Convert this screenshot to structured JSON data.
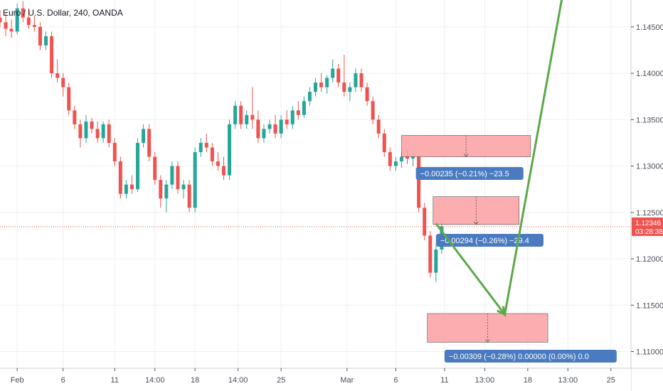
{
  "chart_data": {
    "type": "candlestick",
    "title": "Euro / U.S. Dollar, 240, OANDA",
    "x_range": [
      0,
      110
    ],
    "y_range": [
      1.1082,
      1.1479
    ],
    "y_ticks": [
      "1.14500",
      "1.14000",
      "1.13500",
      "1.13000",
      "1.12500",
      "1.12000",
      "1.11500",
      "1.11000"
    ],
    "x_ticks": [
      {
        "x": 3,
        "label": "Feb"
      },
      {
        "x": 11,
        "label": "6"
      },
      {
        "x": 20,
        "label": "11"
      },
      {
        "x": 27,
        "label": "14:00"
      },
      {
        "x": 34,
        "label": "18"
      },
      {
        "x": 41.5,
        "label": "14:00"
      },
      {
        "x": 49,
        "label": "25"
      },
      {
        "x": 60.5,
        "label": "Mar"
      },
      {
        "x": 69,
        "label": "6"
      },
      {
        "x": 77.5,
        "label": "11"
      },
      {
        "x": 84.5,
        "label": "13:00"
      },
      {
        "x": 92,
        "label": "18"
      },
      {
        "x": 99,
        "label": "13:00"
      },
      {
        "x": 106.5,
        "label": "25"
      }
    ],
    "current_price": {
      "value": 1.12346,
      "label": "1.12346",
      "countdown": "03:28:38"
    },
    "colors": {
      "up": "#26a69a",
      "down": "#ef5350",
      "arrow": "#5ca84a",
      "box_fill": "#fb9fa1",
      "label_bg": "#4a7bc0",
      "price_tag": "#ef5350",
      "grid": "#eef0f3"
    },
    "candles": [
      [
        0,
        1.146,
        1.1468,
        1.145,
        1.1455
      ],
      [
        1,
        1.1455,
        1.1465,
        1.144,
        1.1448
      ],
      [
        2,
        1.1448,
        1.1458,
        1.1438,
        1.1445
      ],
      [
        3,
        1.1445,
        1.1475,
        1.1442,
        1.147
      ],
      [
        4,
        1.147,
        1.1478,
        1.1455,
        1.146
      ],
      [
        5,
        1.146,
        1.147,
        1.1448,
        1.1452
      ],
      [
        6,
        1.1452,
        1.1462,
        1.1445,
        1.145
      ],
      [
        7,
        1.145,
        1.1455,
        1.1425,
        1.143
      ],
      [
        8,
        1.143,
        1.1445,
        1.1425,
        1.144
      ],
      [
        9,
        1.144,
        1.1445,
        1.1395,
        1.14
      ],
      [
        10,
        1.14,
        1.1415,
        1.139,
        1.1395
      ],
      [
        11,
        1.1395,
        1.14,
        1.1375,
        1.1385
      ],
      [
        12,
        1.1385,
        1.139,
        1.1355,
        1.136
      ],
      [
        13,
        1.136,
        1.1365,
        1.134,
        1.1345
      ],
      [
        14,
        1.1345,
        1.135,
        1.132,
        1.133
      ],
      [
        15,
        1.133,
        1.1355,
        1.1325,
        1.1348
      ],
      [
        16,
        1.1348,
        1.1352,
        1.1335,
        1.134
      ],
      [
        17,
        1.134,
        1.1348,
        1.1325,
        1.133
      ],
      [
        18,
        1.133,
        1.1348,
        1.1325,
        1.1345
      ],
      [
        19,
        1.1345,
        1.135,
        1.132,
        1.1325
      ],
      [
        20,
        1.1325,
        1.133,
        1.13,
        1.1305
      ],
      [
        21,
        1.1305,
        1.131,
        1.1265,
        1.127
      ],
      [
        22,
        1.127,
        1.1285,
        1.1265,
        1.128
      ],
      [
        23,
        1.128,
        1.129,
        1.127,
        1.1275
      ],
      [
        24,
        1.1275,
        1.133,
        1.1272,
        1.1325
      ],
      [
        25,
        1.1325,
        1.1345,
        1.132,
        1.134
      ],
      [
        26,
        1.134,
        1.1345,
        1.1305,
        1.131
      ],
      [
        27,
        1.131,
        1.1315,
        1.128,
        1.1285
      ],
      [
        28,
        1.1285,
        1.129,
        1.1255,
        1.1265
      ],
      [
        29,
        1.1265,
        1.1285,
        1.125,
        1.128
      ],
      [
        30,
        1.128,
        1.1305,
        1.1275,
        1.13
      ],
      [
        31,
        1.13,
        1.1305,
        1.127,
        1.1275
      ],
      [
        32,
        1.1275,
        1.1285,
        1.1265,
        1.128
      ],
      [
        33,
        1.128,
        1.1285,
        1.125,
        1.1255
      ],
      [
        34,
        1.1255,
        1.132,
        1.125,
        1.1315
      ],
      [
        35,
        1.1315,
        1.133,
        1.131,
        1.1325
      ],
      [
        36,
        1.1325,
        1.1335,
        1.1315,
        1.132
      ],
      [
        37,
        1.132,
        1.1325,
        1.13,
        1.1305
      ],
      [
        38,
        1.1305,
        1.1315,
        1.1295,
        1.13
      ],
      [
        39,
        1.13,
        1.131,
        1.1285,
        1.129
      ],
      [
        40,
        1.129,
        1.135,
        1.1285,
        1.1345
      ],
      [
        41,
        1.1345,
        1.137,
        1.134,
        1.1365
      ],
      [
        42,
        1.1365,
        1.137,
        1.134,
        1.1345
      ],
      [
        43,
        1.1345,
        1.136,
        1.134,
        1.1355
      ],
      [
        44,
        1.1355,
        1.1385,
        1.134,
        1.135
      ],
      [
        45,
        1.135,
        1.136,
        1.1325,
        1.133
      ],
      [
        46,
        1.133,
        1.1345,
        1.1325,
        1.134
      ],
      [
        47,
        1.134,
        1.135,
        1.1335,
        1.1345
      ],
      [
        48,
        1.1345,
        1.1355,
        1.133,
        1.1335
      ],
      [
        49,
        1.1335,
        1.1355,
        1.133,
        1.135
      ],
      [
        50,
        1.135,
        1.136,
        1.134,
        1.1345
      ],
      [
        51,
        1.1345,
        1.1365,
        1.134,
        1.136
      ],
      [
        52,
        1.136,
        1.137,
        1.135,
        1.1355
      ],
      [
        53,
        1.1355,
        1.1375,
        1.1352,
        1.137
      ],
      [
        54,
        1.137,
        1.1385,
        1.1365,
        1.138
      ],
      [
        55,
        1.138,
        1.1395,
        1.1375,
        1.139
      ],
      [
        56,
        1.139,
        1.14,
        1.138,
        1.1385
      ],
      [
        57,
        1.1385,
        1.1398,
        1.1378,
        1.1395
      ],
      [
        58,
        1.1395,
        1.1415,
        1.139,
        1.1405
      ],
      [
        59,
        1.1405,
        1.141,
        1.1385,
        1.139
      ],
      [
        60,
        1.139,
        1.142,
        1.1375,
        1.138
      ],
      [
        61,
        1.138,
        1.139,
        1.137,
        1.1385
      ],
      [
        62,
        1.1385,
        1.1405,
        1.138,
        1.14
      ],
      [
        63,
        1.14,
        1.1405,
        1.138,
        1.1385
      ],
      [
        64,
        1.1385,
        1.139,
        1.1365,
        1.137
      ],
      [
        65,
        1.137,
        1.1375,
        1.1345,
        1.135
      ],
      [
        66,
        1.135,
        1.1355,
        1.133,
        1.1335
      ],
      [
        67,
        1.1335,
        1.134,
        1.131,
        1.1315
      ],
      [
        68,
        1.1315,
        1.132,
        1.1295,
        1.13
      ],
      [
        69,
        1.13,
        1.131,
        1.1295,
        1.1305
      ],
      [
        70,
        1.1305,
        1.1315,
        1.1298,
        1.131
      ],
      [
        71,
        1.131,
        1.1318,
        1.1302,
        1.1308
      ],
      [
        72,
        1.1308,
        1.1315,
        1.13,
        1.131
      ],
      [
        73,
        1.131,
        1.1312,
        1.125,
        1.1255
      ],
      [
        74,
        1.1255,
        1.126,
        1.122,
        1.1225
      ],
      [
        75,
        1.1225,
        1.123,
        1.118,
        1.1185
      ],
      [
        76,
        1.1185,
        1.1215,
        1.1175,
        1.121
      ],
      [
        77,
        1.121,
        1.124,
        1.1205,
        1.1235
      ]
    ],
    "annotations": {
      "boxes": [
        {
          "x1": 70,
          "x2": 92.5,
          "y_top": 1.1333,
          "y_bottom": 1.131,
          "label": "−0.00235 (−0.21%) −23.5",
          "label_x": 72.5,
          "label_y": 1.1292
        },
        {
          "x1": 75.5,
          "x2": 90.5,
          "y_top": 1.1267,
          "y_bottom": 1.1237,
          "label": "−0.00294 (−0.26%) −29.4",
          "label_x": 76,
          "label_y": 1.122
        },
        {
          "x1": 74.5,
          "x2": 95.5,
          "y_top": 1.1141,
          "y_bottom": 1.111,
          "label": "−0.00309 (−0.28%)  0.00000 (0.00%) 0.0",
          "label_x": 77.5,
          "label_y": 1.1095
        }
      ],
      "arrow_path": [
        [
          76,
          1.1238
        ],
        [
          88,
          1.114
        ],
        [
          98,
          1.1482
        ]
      ]
    }
  }
}
